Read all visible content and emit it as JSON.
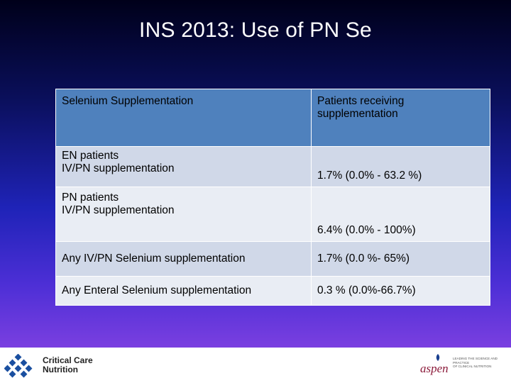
{
  "slide": {
    "title": "INS 2013: Use of PN Se"
  },
  "table": {
    "header": {
      "col1": "Selenium Supplementation",
      "col2_line1": "Patients receiving",
      "col2_line2": "supplementation"
    },
    "rows": [
      {
        "label_line1": "EN patients",
        "label_line2": "IV/PN supplementation",
        "value": "1.7% (0.0% - 63.2 %)"
      },
      {
        "label_line1": "PN patients",
        "label_line2": "IV/PN supplementation",
        "value": "6.4% (0.0% - 100%)"
      },
      {
        "label_line1": "Any IV/PN Selenium supplementation",
        "value": "1.7% (0.0 %- 65%)"
      },
      {
        "label_line1": "Any Enteral Selenium supplementation",
        "value": "0.3 % (0.0%-66.7%)"
      }
    ]
  },
  "footer": {
    "left_logo_line1": "Critical Care",
    "left_logo_line2": "Nutrition",
    "right_logo_word": "aspen",
    "right_logo_tag_line1": "LEADING THE SCIENCE AND PRACTICE",
    "right_logo_tag_line2": "OF CLINICAL NUTRITION"
  },
  "colors": {
    "header_cell": "#4f81bd",
    "row_dark": "#d0d8e8",
    "row_light": "#e9edf4",
    "aspen": "#8b1a3a",
    "ccn_blue": "#1a4fa0"
  }
}
